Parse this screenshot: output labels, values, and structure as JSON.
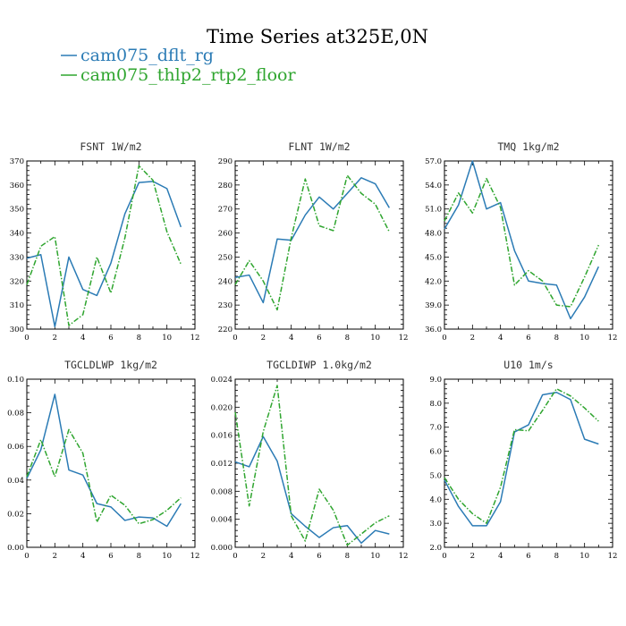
{
  "figure": {
    "title": "Time Series at325E,0N",
    "legend": [
      {
        "name": "cam075_dflt_rg",
        "color": "#2b7bb5",
        "dash": "solid"
      },
      {
        "name": "cam075_thlp2_rtp2_floor",
        "color": "#2fa52f",
        "dash": "dashdot"
      }
    ]
  },
  "chart_data": [
    {
      "type": "line",
      "title": "FSNT   1W/m2",
      "x": [
        0,
        1,
        2,
        3,
        4,
        5,
        6,
        7,
        8,
        9,
        10,
        11
      ],
      "xlim": [
        0,
        12
      ],
      "xticks": [
        0,
        2,
        4,
        6,
        8,
        10,
        12
      ],
      "xticks_minor": [
        1,
        3,
        5,
        7,
        9,
        11
      ],
      "ylim": [
        300,
        370
      ],
      "yticks": [
        300,
        310,
        320,
        330,
        340,
        350,
        360,
        370
      ],
      "ytick_labels": [
        "300",
        "310",
        "320",
        "330",
        "340",
        "350",
        "360",
        "370"
      ],
      "series": [
        {
          "name": "cam075_dflt_rg",
          "values": [
            329.5,
            331,
            301,
            330,
            316.5,
            314,
            327.5,
            348,
            361,
            361.5,
            358.5,
            342.5
          ]
        },
        {
          "name": "cam075_thlp2_rtp2_floor",
          "values": [
            318.5,
            334.5,
            338.5,
            301.5,
            306,
            330,
            315,
            338,
            368,
            362,
            340.5,
            327
          ]
        }
      ]
    },
    {
      "type": "line",
      "title": "FLNT   1W/m2",
      "x": [
        0,
        1,
        2,
        3,
        4,
        5,
        6,
        7,
        8,
        9,
        10,
        11
      ],
      "xlim": [
        0,
        12
      ],
      "xticks": [
        0,
        2,
        4,
        6,
        8,
        10,
        12
      ],
      "xticks_minor": [
        1,
        3,
        5,
        7,
        9,
        11
      ],
      "ylim": [
        220,
        290
      ],
      "yticks": [
        220,
        230,
        240,
        250,
        260,
        270,
        280,
        290
      ],
      "ytick_labels": [
        "220",
        "230",
        "240",
        "250",
        "260",
        "270",
        "280",
        "290"
      ],
      "series": [
        {
          "name": "cam075_dflt_rg",
          "values": [
            241.5,
            242.5,
            231,
            257.5,
            257,
            267.5,
            275,
            270,
            276.5,
            283,
            280.5,
            270.5
          ]
        },
        {
          "name": "cam075_thlp2_rtp2_floor",
          "values": [
            238.5,
            248.5,
            240,
            228,
            258,
            282.5,
            263,
            261,
            284,
            276.5,
            272,
            260.5
          ]
        }
      ]
    },
    {
      "type": "line",
      "title": "TMQ   1kg/m2",
      "x": [
        0,
        1,
        2,
        3,
        4,
        5,
        6,
        7,
        8,
        9,
        10,
        11
      ],
      "xlim": [
        0,
        12
      ],
      "xticks": [
        0,
        2,
        4,
        6,
        8,
        10,
        12
      ],
      "xticks_minor": [
        1,
        3,
        5,
        7,
        9,
        11
      ],
      "ylim": [
        36,
        57
      ],
      "yticks": [
        36,
        39,
        42,
        45,
        48,
        51,
        54,
        57
      ],
      "ytick_labels": [
        "36.0",
        "39.0",
        "42.0",
        "45.0",
        "48.0",
        "51.0",
        "54.0",
        "57.0"
      ],
      "series": [
        {
          "name": "cam075_dflt_rg",
          "values": [
            48.5,
            51.5,
            57,
            51,
            51.8,
            45.8,
            42,
            41.7,
            41.5,
            37.3,
            40,
            43.8
          ]
        },
        {
          "name": "cam075_thlp2_rtp2_floor",
          "values": [
            49.5,
            53,
            50.5,
            54.8,
            51.2,
            41.5,
            43.3,
            42,
            39,
            38.8,
            42.5,
            46.5
          ]
        }
      ]
    },
    {
      "type": "line",
      "title": "TGCLDLWP   1kg/m2",
      "x": [
        0,
        1,
        2,
        3,
        4,
        5,
        6,
        7,
        8,
        9,
        10,
        11
      ],
      "xlim": [
        0,
        12
      ],
      "xticks": [
        0,
        2,
        4,
        6,
        8,
        10,
        12
      ],
      "xticks_minor": [
        1,
        3,
        5,
        7,
        9,
        11
      ],
      "ylim": [
        0,
        0.1
      ],
      "yticks": [
        0,
        0.02,
        0.04,
        0.06,
        0.08,
        0.1
      ],
      "ytick_labels": [
        "0.00",
        "0.02",
        "0.04",
        "0.06",
        "0.08",
        "0.10"
      ],
      "series": [
        {
          "name": "cam075_dflt_rg",
          "values": [
            0.041,
            0.058,
            0.091,
            0.046,
            0.043,
            0.026,
            0.024,
            0.016,
            0.018,
            0.0175,
            0.0125,
            0.026
          ]
        },
        {
          "name": "cam075_thlp2_rtp2_floor",
          "values": [
            0.042,
            0.064,
            0.042,
            0.07,
            0.056,
            0.015,
            0.031,
            0.025,
            0.014,
            0.0165,
            0.022,
            0.0295
          ]
        }
      ]
    },
    {
      "type": "line",
      "title": "TGCLDIWP   1.0kg/m2",
      "x": [
        0,
        1,
        2,
        3,
        4,
        5,
        6,
        7,
        8,
        9,
        10,
        11
      ],
      "xlim": [
        0,
        12
      ],
      "xticks": [
        0,
        2,
        4,
        6,
        8,
        10,
        12
      ],
      "xticks_minor": [
        1,
        3,
        5,
        7,
        9,
        11
      ],
      "ylim": [
        0,
        0.024
      ],
      "yticks": [
        0,
        0.004,
        0.008,
        0.012,
        0.016,
        0.02,
        0.024
      ],
      "ytick_labels": [
        "0.000",
        "0.004",
        "0.008",
        "0.012",
        "0.016",
        "0.020",
        "0.024"
      ],
      "series": [
        {
          "name": "cam075_dflt_rg",
          "values": [
            0.0122,
            0.0115,
            0.0158,
            0.0123,
            0.0048,
            0.003,
            0.0014,
            0.0028,
            0.0031,
            0.0006,
            0.0024,
            0.0019
          ]
        },
        {
          "name": "cam075_thlp2_rtp2_floor",
          "values": [
            0.0193,
            0.0059,
            0.0165,
            0.0231,
            0.0045,
            0.0009,
            0.0083,
            0.0053,
            0.0003,
            0.0019,
            0.0035,
            0.0045
          ]
        }
      ]
    },
    {
      "type": "line",
      "title": "U10   1m/s",
      "x": [
        0,
        1,
        2,
        3,
        4,
        5,
        6,
        7,
        8,
        9,
        10,
        11
      ],
      "xlim": [
        0,
        12
      ],
      "xticks": [
        0,
        2,
        4,
        6,
        8,
        10,
        12
      ],
      "xticks_minor": [
        1,
        3,
        5,
        7,
        9,
        11
      ],
      "ylim": [
        2,
        9
      ],
      "yticks": [
        2,
        3,
        4,
        5,
        6,
        7,
        8,
        9
      ],
      "ytick_labels": [
        "2.0",
        "3.0",
        "4.0",
        "5.0",
        "6.0",
        "7.0",
        "8.0",
        "9.0"
      ],
      "series": [
        {
          "name": "cam075_dflt_rg",
          "values": [
            4.8,
            3.7,
            2.9,
            2.9,
            3.9,
            6.8,
            7.1,
            8.35,
            8.45,
            8.15,
            6.5,
            6.3
          ]
        },
        {
          "name": "cam075_thlp2_rtp2_floor",
          "values": [
            4.9,
            4.0,
            3.4,
            3.0,
            4.5,
            6.9,
            6.85,
            7.7,
            8.6,
            8.3,
            7.8,
            7.25
          ]
        }
      ]
    }
  ]
}
